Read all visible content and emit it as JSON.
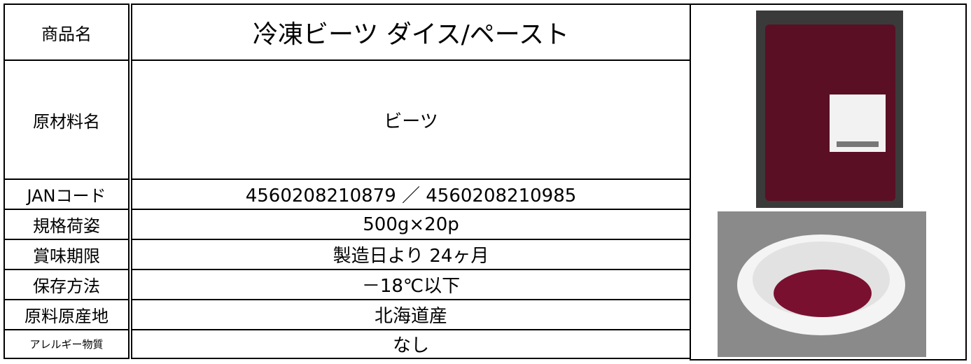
{
  "table": {
    "rows": [
      [
        "商品名",
        "冷凍ビーツ ダイス/ペースト"
      ],
      [
        "原材料名",
        "ビーツ"
      ],
      [
        "JANコード",
        "4560208210879 ／ 4560208210985"
      ],
      [
        "規格荷姿",
        "500g×20p"
      ],
      [
        "賞味期限",
        "製造日より 24ヶ月"
      ],
      [
        "保存方法",
        "－18℃以下"
      ],
      [
        "原料原産地",
        "北海道産"
      ],
      [
        "アレルギー物質",
        "なし"
      ]
    ]
  }
}
